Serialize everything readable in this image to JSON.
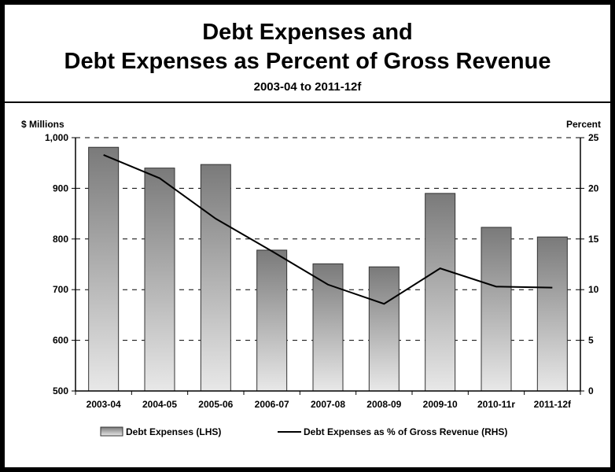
{
  "chart_data": {
    "type": "bar",
    "title_line1": "Debt Expenses and",
    "title_line2": "Debt Expenses as Percent of Gross Revenue",
    "subtitle": "2003-04 to 2011-12f",
    "y_left_label": "$ Millions",
    "y_right_label": "Percent",
    "categories": [
      "2003-04",
      "2004-05",
      "2005-06",
      "2006-07",
      "2007-08",
      "2008-09",
      "2009-10",
      "2010-11r",
      "2011-12f"
    ],
    "y_left_ticks": [
      "500",
      "600",
      "700",
      "800",
      "900",
      "1,000"
    ],
    "y_right_ticks": [
      "0",
      "5",
      "10",
      "15",
      "20",
      "25"
    ],
    "ylim_left": [
      500,
      1000
    ],
    "ylim_right": [
      0,
      25
    ],
    "grid": "horizontal dashed",
    "legend_position": "bottom",
    "series": [
      {
        "name": "Debt Expenses (LHS)",
        "type": "bar",
        "axis": "left",
        "values": [
          981,
          940,
          947,
          778,
          751,
          745,
          890,
          823,
          804
        ]
      },
      {
        "name": "Debt Expenses as % of Gross Revenue (RHS)",
        "type": "line",
        "axis": "right",
        "values": [
          23.3,
          21.0,
          17.0,
          13.8,
          10.5,
          8.6,
          12.1,
          10.3,
          10.2
        ]
      }
    ]
  }
}
